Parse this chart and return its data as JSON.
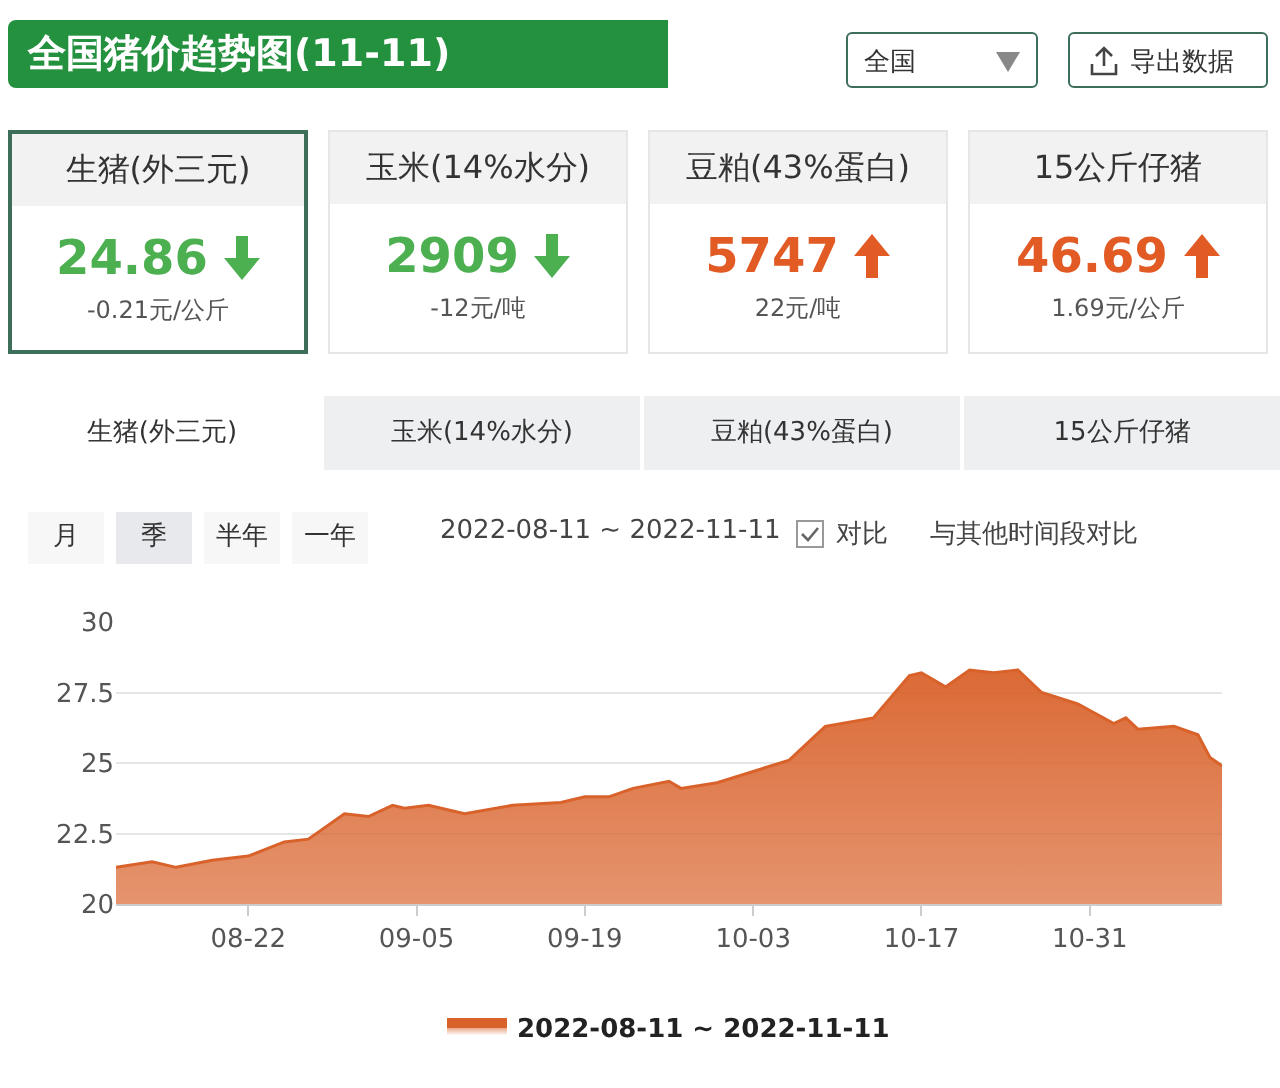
{
  "chart_data": [
    {
      "type": "other",
      "title": "全国猪价趋势图(11-11)",
      "annotations": [
        "全国",
        "导出数据",
        "生猪(外三元)",
        "玉米(14%水分)",
        "豆粕(43%蛋白)",
        "15公斤仔猪",
        "24.86",
        "2909",
        "5747",
        "46.69",
        "-0.21元/公斤",
        "-12元/吨",
        "22元/吨",
        "1.69元/公斤",
        "生猪(外三元)",
        "玉米(14%水分)",
        "豆粕(43%蛋白)",
        "15公斤仔猪",
        "月",
        "季",
        "半年",
        "一年",
        "2022-08-11 ~ 2022-11-11",
        "对比",
        "与其他时间段对比"
      ]
    },
    {
      "type": "area",
      "x": [
        "2022-08-11",
        "2022-08-14",
        "2022-08-16",
        "2022-08-19",
        "2022-08-22",
        "2022-08-25",
        "2022-08-27",
        "2022-08-30",
        "2022-09-01",
        "2022-09-03",
        "2022-09-04",
        "2022-09-06",
        "2022-09-09",
        "2022-09-13",
        "2022-09-17",
        "2022-09-19",
        "2022-09-21",
        "2022-09-23",
        "2022-09-26",
        "2022-09-27",
        "2022-09-30",
        "2022-10-06",
        "2022-10-09",
        "2022-10-13",
        "2022-10-16",
        "2022-10-17",
        "2022-10-19",
        "2022-10-21",
        "2022-10-23",
        "2022-10-25",
        "2022-10-27",
        "2022-10-30",
        "2022-11-02",
        "2022-11-03",
        "2022-11-04",
        "2022-11-07",
        "2022-11-09",
        "2022-11-10",
        "2022-11-11"
      ],
      "series": [
        {
          "name": "2022-08-11 ~ 2022-11-11",
          "color": "#d9622b",
          "values": [
            21.3,
            21.5,
            21.3,
            21.55,
            21.7,
            22.2,
            22.3,
            23.2,
            23.1,
            23.5,
            23.4,
            23.5,
            23.2,
            23.5,
            23.6,
            23.8,
            23.8,
            24.1,
            24.35,
            24.1,
            24.3,
            25.1,
            26.3,
            26.6,
            28.1,
            28.2,
            27.7,
            28.3,
            28.2,
            28.3,
            27.5,
            27.1,
            26.4,
            26.6,
            26.2,
            26.3,
            26.0,
            25.2,
            24.9
          ]
        }
      ],
      "xlim": [
        "2022-08-11",
        "2022-11-11"
      ],
      "xticks": [
        {
          "value": "2022-08-22",
          "label": "08-22"
        },
        {
          "value": "2022-09-05",
          "label": "09-05"
        },
        {
          "value": "2022-09-19",
          "label": "09-19"
        },
        {
          "value": "2022-10-03",
          "label": "10-03"
        },
        {
          "value": "2022-10-17",
          "label": "10-17"
        },
        {
          "value": "2022-10-31",
          "label": "10-31"
        }
      ],
      "ylim": [
        20,
        30
      ],
      "yticks": [
        20,
        22.5,
        25,
        27.5,
        30
      ],
      "grid": "y",
      "legend": "bottom",
      "marker": "none"
    }
  ]
}
